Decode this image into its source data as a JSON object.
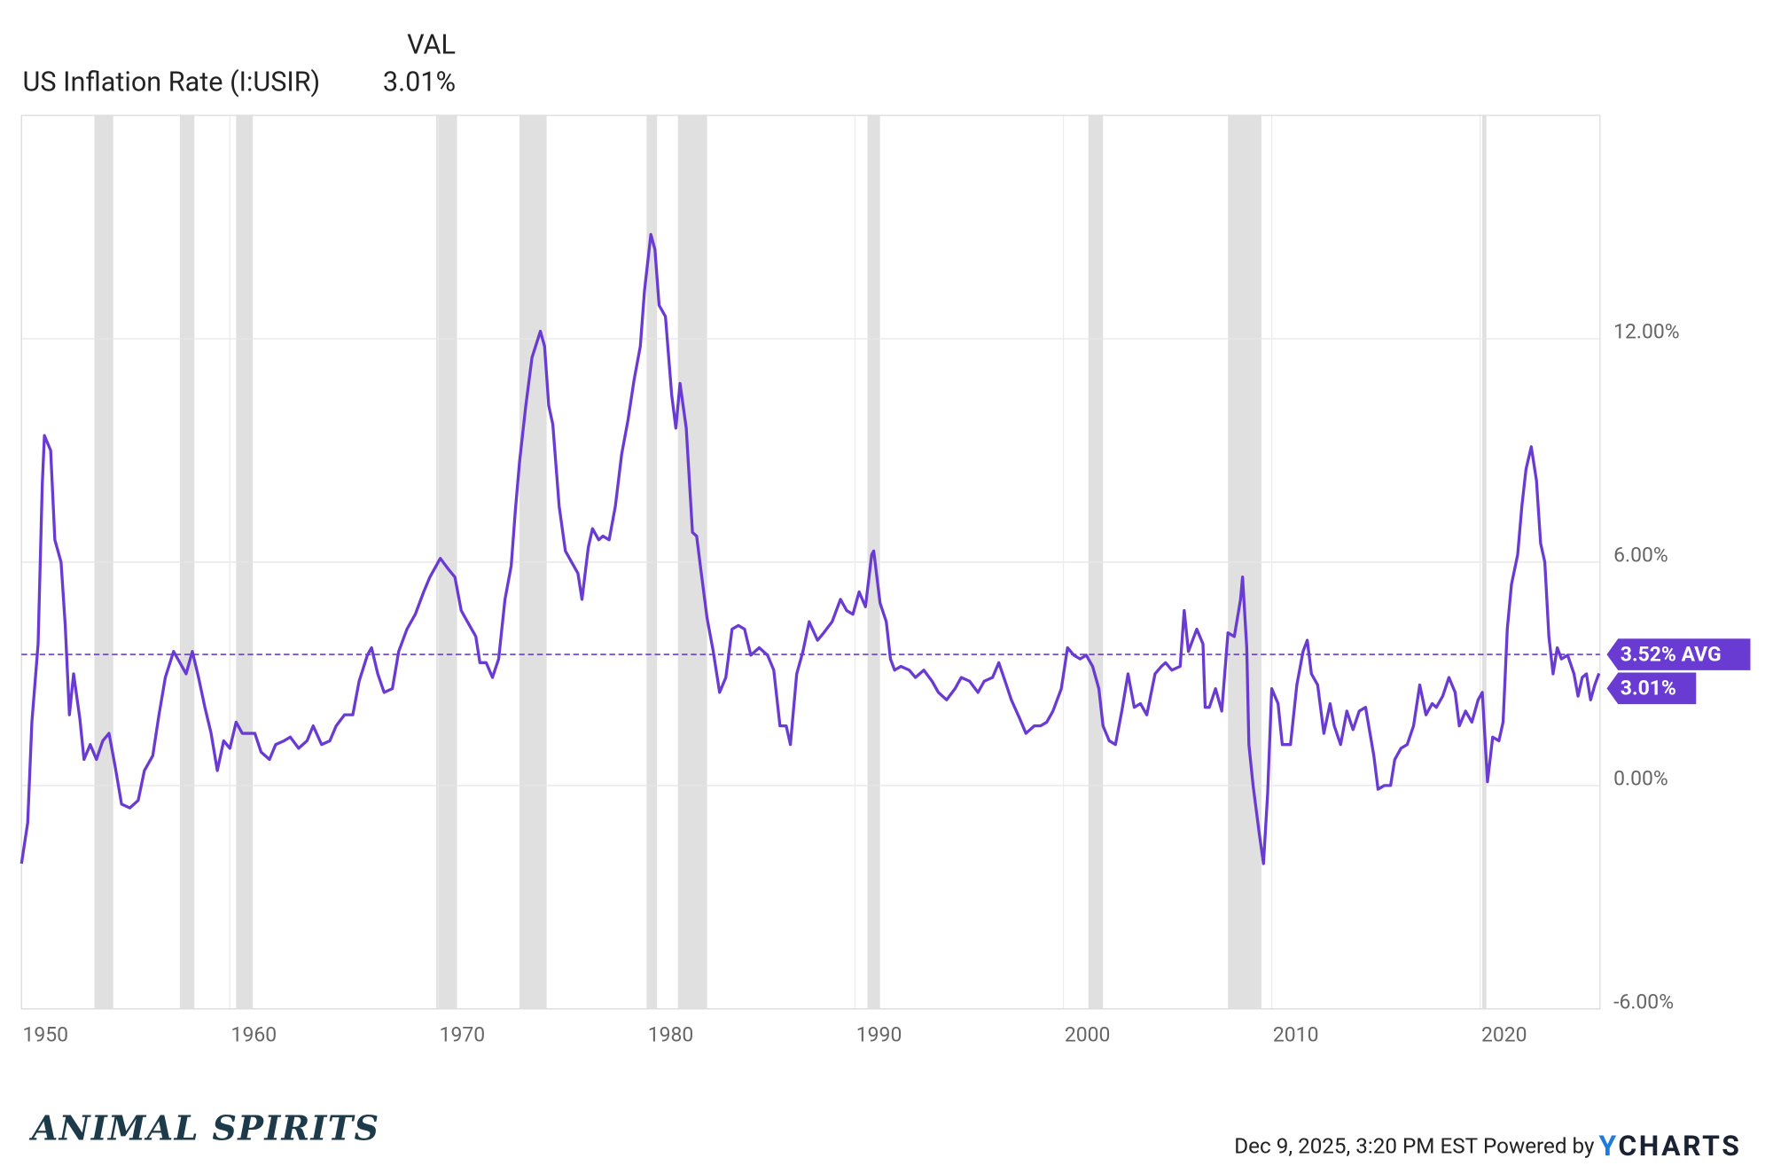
{
  "chart_data": {
    "type": "line",
    "column_header": "VAL",
    "series": [
      {
        "name": "US Inflation Rate (I:USIR)",
        "color": "#6a3bd2",
        "x": [
          1950.0,
          1950.3,
          1950.5,
          1950.8,
          1951.0,
          1951.1,
          1951.4,
          1951.6,
          1951.9,
          1952.1,
          1952.3,
          1952.5,
          1952.8,
          1953.0,
          1953.3,
          1953.6,
          1953.9,
          1954.2,
          1954.5,
          1954.8,
          1955.2,
          1955.6,
          1955.9,
          1956.3,
          1956.6,
          1956.9,
          1957.3,
          1957.6,
          1957.9,
          1958.2,
          1958.5,
          1958.8,
          1959.1,
          1959.4,
          1959.7,
          1960.0,
          1960.3,
          1960.6,
          1960.9,
          1961.2,
          1961.5,
          1961.9,
          1962.2,
          1962.6,
          1962.9,
          1963.3,
          1963.7,
          1964.0,
          1964.4,
          1964.8,
          1965.1,
          1965.5,
          1965.9,
          1966.2,
          1966.6,
          1966.8,
          1967.1,
          1967.4,
          1967.8,
          1968.1,
          1968.5,
          1968.9,
          1969.3,
          1969.6,
          1969.9,
          1970.1,
          1970.5,
          1970.8,
          1971.1,
          1971.4,
          1971.8,
          1972.0,
          1972.3,
          1972.6,
          1972.9,
          1973.2,
          1973.5,
          1973.7,
          1973.9,
          1974.2,
          1974.5,
          1974.9,
          1975.1,
          1975.3,
          1975.5,
          1975.8,
          1976.1,
          1976.4,
          1976.7,
          1976.9,
          1977.2,
          1977.4,
          1977.7,
          1977.9,
          1978.2,
          1978.5,
          1978.8,
          1979.1,
          1979.4,
          1979.7,
          1979.9,
          1980.2,
          1980.4,
          1980.6,
          1980.9,
          1981.2,
          1981.4,
          1981.6,
          1981.9,
          1982.2,
          1982.4,
          1982.6,
          1982.9,
          1983.2,
          1983.5,
          1983.8,
          1984.1,
          1984.4,
          1984.7,
          1985.0,
          1985.4,
          1985.8,
          1986.1,
          1986.4,
          1986.7,
          1986.9,
          1987.2,
          1987.5,
          1987.8,
          1988.2,
          1988.5,
          1988.9,
          1989.3,
          1989.6,
          1989.9,
          1990.2,
          1990.5,
          1990.8,
          1990.9,
          1991.2,
          1991.5,
          1991.7,
          1991.9,
          1992.2,
          1992.6,
          1992.9,
          1993.3,
          1993.7,
          1994.0,
          1994.4,
          1994.8,
          1995.1,
          1995.5,
          1995.9,
          1996.2,
          1996.6,
          1996.9,
          1997.2,
          1997.5,
          1997.9,
          1998.2,
          1998.6,
          1998.9,
          1999.2,
          1999.5,
          1999.9,
          2000.2,
          2000.5,
          2000.8,
          2001.1,
          2001.4,
          2001.7,
          2001.9,
          2002.2,
          2002.5,
          2002.8,
          2003.1,
          2003.4,
          2003.7,
          2004.0,
          2004.4,
          2004.7,
          2004.9,
          2005.2,
          2005.6,
          2005.8,
          2006.0,
          2006.4,
          2006.7,
          2006.8,
          2007.0,
          2007.3,
          2007.6,
          2007.9,
          2008.2,
          2008.5,
          2008.6,
          2008.8,
          2008.9,
          2009.1,
          2009.4,
          2009.6,
          2009.8,
          2010.0,
          2010.3,
          2010.5,
          2010.9,
          2011.2,
          2011.5,
          2011.7,
          2011.9,
          2012.2,
          2012.5,
          2012.8,
          2013.0,
          2013.3,
          2013.6,
          2013.9,
          2014.2,
          2014.5,
          2014.9,
          2015.1,
          2015.4,
          2015.7,
          2015.9,
          2016.2,
          2016.5,
          2016.8,
          2017.1,
          2017.4,
          2017.7,
          2017.9,
          2018.2,
          2018.5,
          2018.8,
          2019.0,
          2019.3,
          2019.6,
          2019.9,
          2020.1,
          2020.35,
          2020.6,
          2020.9,
          2021.1,
          2021.3,
          2021.5,
          2021.8,
          2022.0,
          2022.2,
          2022.45,
          2022.7,
          2022.9,
          2023.1,
          2023.3,
          2023.5,
          2023.7,
          2023.9,
          2024.2,
          2024.5,
          2024.7,
          2024.9,
          2025.1,
          2025.3,
          2025.5,
          2025.7
        ],
        "values": [
          -2.1,
          -1.0,
          1.7,
          3.8,
          8.1,
          9.4,
          9.0,
          6.6,
          6.0,
          4.3,
          1.9,
          3.0,
          1.8,
          0.7,
          1.1,
          0.7,
          1.2,
          1.4,
          0.5,
          -0.5,
          -0.6,
          -0.4,
          0.4,
          0.8,
          1.9,
          2.9,
          3.6,
          3.3,
          3.0,
          3.6,
          2.9,
          2.1,
          1.4,
          0.4,
          1.2,
          1.0,
          1.7,
          1.4,
          1.4,
          1.4,
          0.9,
          0.7,
          1.1,
          1.2,
          1.3,
          1.0,
          1.2,
          1.6,
          1.1,
          1.2,
          1.6,
          1.9,
          1.9,
          2.8,
          3.5,
          3.7,
          3.0,
          2.5,
          2.6,
          3.6,
          4.2,
          4.6,
          5.2,
          5.6,
          5.9,
          6.1,
          5.8,
          5.6,
          4.7,
          4.4,
          4.0,
          3.3,
          3.3,
          2.9,
          3.4,
          5.0,
          5.9,
          7.4,
          8.7,
          10.2,
          11.5,
          12.2,
          11.8,
          10.2,
          9.7,
          7.5,
          6.3,
          6.0,
          5.7,
          5.0,
          6.4,
          6.9,
          6.6,
          6.7,
          6.6,
          7.5,
          8.9,
          9.8,
          10.9,
          11.8,
          13.3,
          14.8,
          14.4,
          12.9,
          12.6,
          10.5,
          9.6,
          10.8,
          9.6,
          6.8,
          6.7,
          5.8,
          4.5,
          3.6,
          2.5,
          2.9,
          4.2,
          4.3,
          4.2,
          3.5,
          3.7,
          3.5,
          3.1,
          1.6,
          1.6,
          1.1,
          3.0,
          3.6,
          4.4,
          3.9,
          4.1,
          4.4,
          5.0,
          4.7,
          4.6,
          5.2,
          4.8,
          6.2,
          6.3,
          4.9,
          4.4,
          3.4,
          3.1,
          3.2,
          3.1,
          2.9,
          3.1,
          2.8,
          2.5,
          2.3,
          2.6,
          2.9,
          2.8,
          2.5,
          2.8,
          2.9,
          3.3,
          2.8,
          2.3,
          1.8,
          1.4,
          1.6,
          1.6,
          1.7,
          2.0,
          2.6,
          3.7,
          3.5,
          3.4,
          3.5,
          3.2,
          2.6,
          1.6,
          1.2,
          1.1,
          2.0,
          3.0,
          2.1,
          2.2,
          1.9,
          3.0,
          3.2,
          3.3,
          3.1,
          3.2,
          4.7,
          3.6,
          4.2,
          3.8,
          2.1,
          2.1,
          2.6,
          2.0,
          4.1,
          4.0,
          5.0,
          5.6,
          3.7,
          1.1,
          0.0,
          -1.3,
          -2.1,
          -0.2,
          2.6,
          2.2,
          1.1,
          1.1,
          2.7,
          3.6,
          3.9,
          3.0,
          2.7,
          1.4,
          2.2,
          1.6,
          1.1,
          2.0,
          1.5,
          2.0,
          2.1,
          0.8,
          -0.1,
          0.0,
          0.0,
          0.7,
          1.0,
          1.1,
          1.6,
          2.7,
          1.9,
          2.2,
          2.1,
          2.4,
          2.9,
          2.5,
          1.6,
          2.0,
          1.7,
          2.3,
          2.5,
          0.1,
          1.3,
          1.2,
          1.7,
          4.2,
          5.4,
          6.2,
          7.5,
          8.5,
          9.1,
          8.2,
          6.5,
          6.0,
          4.0,
          3.0,
          3.7,
          3.4,
          3.5,
          3.0,
          2.4,
          2.9,
          3.0,
          2.3,
          2.7,
          3.01
        ]
      }
    ],
    "last_value": {
      "value": 3.01,
      "label": "3.01%"
    },
    "average": {
      "value": 3.52,
      "label": "3.52% AVG"
    },
    "recessions": [
      [
        1953.5,
        1954.4
      ],
      [
        1957.6,
        1958.3
      ],
      [
        1960.3,
        1961.1
      ],
      [
        1969.9,
        1970.9
      ],
      [
        1973.9,
        1975.2
      ],
      [
        1980.0,
        1980.5
      ],
      [
        1981.5,
        1982.9
      ],
      [
        1990.6,
        1991.2
      ],
      [
        2001.2,
        2001.9
      ],
      [
        2007.9,
        2009.5
      ],
      [
        2020.1,
        2020.3
      ]
    ],
    "xlim": [
      1950.0,
      2025.75
    ],
    "xticks": [
      1950,
      1960,
      1970,
      1980,
      1990,
      2000,
      2010,
      2020
    ],
    "ylim": [
      -6,
      18
    ],
    "yticks": [
      {
        "value": -6,
        "label": "-6.00%"
      },
      {
        "value": 0,
        "label": "0.00%"
      },
      {
        "value": 6,
        "label": "6.00%"
      },
      {
        "value": 12,
        "label": "12.00%"
      }
    ],
    "grid": true,
    "timestamp": "Dec 9, 2025, 3:20 PM EST",
    "powered_by": "Powered by",
    "brand": "YCHARTS",
    "logo": "ANIMAL SPIRITS"
  }
}
